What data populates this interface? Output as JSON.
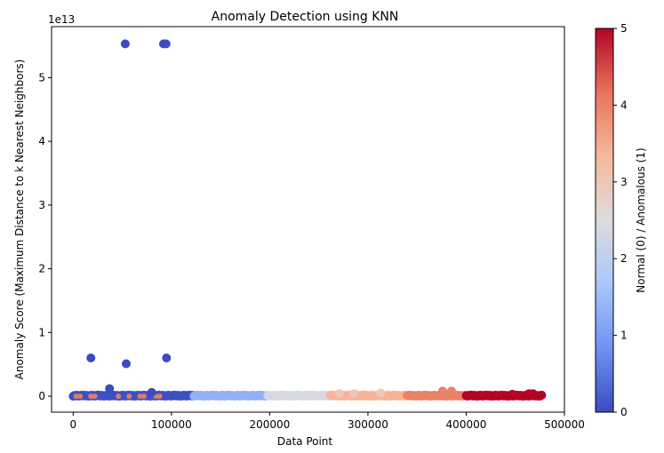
{
  "chart_data": {
    "type": "scatter",
    "title": "Anomaly Detection using KNN",
    "xlabel": "Data Point",
    "ylabel": "Anomaly Score (Maximum Distance to k Nearest Neighbors)",
    "y_offset_label": "1e13",
    "xlim": [
      -22000,
      500000
    ],
    "ylim": [
      -0.25,
      5.8
    ],
    "x_ticks": [
      0,
      100000,
      200000,
      300000,
      400000,
      500000
    ],
    "x_tick_labels": [
      "0",
      "100000",
      "200000",
      "300000",
      "400000",
      "500000"
    ],
    "y_ticks": [
      0,
      1,
      2,
      3,
      4,
      5
    ],
    "y_tick_labels": [
      "0",
      "1",
      "2",
      "3",
      "4",
      "5"
    ],
    "y_unit_multiplier": "1e13",
    "grid": false,
    "colormap": "coolwarm",
    "colorbar": {
      "label": "Normal (0) / Anomalous (1)",
      "range": [
        0,
        5
      ],
      "ticks": [
        0,
        1,
        2,
        3,
        4,
        5
      ],
      "tick_labels": [
        "0",
        "1",
        "2",
        "3",
        "4",
        "5"
      ],
      "stops": [
        "#3b4cc0",
        "#6f92f3",
        "#aac7fd",
        "#dddcdc",
        "#f7b89c",
        "#e7745b",
        "#b40426"
      ]
    },
    "outliers": [
      {
        "x": 53000,
        "y": 5.53,
        "c": 0
      },
      {
        "x": 92000,
        "y": 5.53,
        "c": 0
      },
      {
        "x": 94500,
        "y": 5.53,
        "c": 0
      },
      {
        "x": 18000,
        "y": 0.6,
        "c": 0
      },
      {
        "x": 95000,
        "y": 0.6,
        "c": 0
      },
      {
        "x": 54000,
        "y": 0.51,
        "c": 0
      },
      {
        "x": 37000,
        "y": 0.12,
        "c": 0
      },
      {
        "x": 80000,
        "y": 0.06,
        "c": 0
      },
      {
        "x": 271000,
        "y": 0.04,
        "c": 3
      },
      {
        "x": 286000,
        "y": 0.04,
        "c": 3
      },
      {
        "x": 313000,
        "y": 0.05,
        "c": 3
      },
      {
        "x": 376000,
        "y": 0.08,
        "c": 4
      },
      {
        "x": 385000,
        "y": 0.08,
        "c": 4
      },
      {
        "x": 447000,
        "y": 0.03,
        "c": 5
      },
      {
        "x": 464000,
        "y": 0.04,
        "c": 5
      },
      {
        "x": 468000,
        "y": 0.04,
        "c": 5
      }
    ],
    "bands": [
      {
        "x_start": 0,
        "x_end": 123000,
        "y": 0.0,
        "c": 0.05
      },
      {
        "x_start": 123000,
        "y": 0.0,
        "x_end": 198000,
        "c": 1.3
      },
      {
        "x_start": 198000,
        "x_end": 262000,
        "y": 0.0,
        "c": 2.4
      },
      {
        "x_start": 262000,
        "x_end": 340000,
        "y": 0.0,
        "c": 3.4
      },
      {
        "x_start": 340000,
        "x_end": 400000,
        "y": 0.0,
        "c": 4.0
      },
      {
        "x_start": 400000,
        "x_end": 477000,
        "y": 0.0,
        "c": 5.0
      }
    ],
    "embedded_anomalies_x": [
      3000,
      7000,
      18000,
      22000,
      46000,
      57000,
      68000,
      72000,
      84000,
      88000
    ]
  }
}
